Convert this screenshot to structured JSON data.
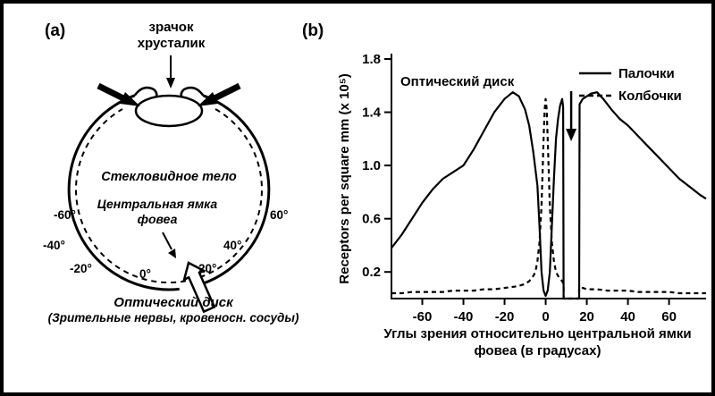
{
  "figure": {
    "colors": {
      "ink": "#000000",
      "paper": "#ffffff"
    }
  },
  "panel_a": {
    "label": "(a)",
    "pupil_line1": "зрачок",
    "pupil_line2": "хрусталик",
    "vitreous": "Стекловидное тело",
    "fovea_line1": "Центральная ямка",
    "fovea_line2": "фовеа",
    "optic_line1": "Оптический диск",
    "optic_line2": "(Зрительные нервы, кровеносн. сосуды)",
    "angles": [
      "-60°",
      "-40°",
      "-20°",
      "0°",
      "20°",
      "40°",
      "60°"
    ]
  },
  "panel_b": {
    "label": "(b)"
  },
  "chart_data": {
    "type": "line",
    "title": "",
    "ylabel": "Receptors per square mm (x 10⁵)",
    "xlabel_line1": "Углы зрения относительно центральной ямки",
    "xlabel_line2": "фовеа (в градусах)",
    "xlim": [
      -75,
      78
    ],
    "ylim": [
      0,
      1.8
    ],
    "x_ticks": [
      -60,
      -40,
      -20,
      0,
      20,
      40,
      60
    ],
    "y_ticks": [
      0.2,
      0.6,
      1.0,
      1.4,
      1.8
    ],
    "grid": false,
    "legend_position": "top-right",
    "annotation": {
      "label": "Оптический диск",
      "arrow_x_deg": 12.4
    },
    "series": [
      {
        "name": "Палочки",
        "style": "solid",
        "points": [
          [
            -75,
            0.38
          ],
          [
            -70,
            0.48
          ],
          [
            -65,
            0.6
          ],
          [
            -60,
            0.72
          ],
          [
            -55,
            0.82
          ],
          [
            -50,
            0.9
          ],
          [
            -45,
            0.95
          ],
          [
            -40,
            1.0
          ],
          [
            -35,
            1.12
          ],
          [
            -30,
            1.26
          ],
          [
            -25,
            1.4
          ],
          [
            -20,
            1.5
          ],
          [
            -16,
            1.55
          ],
          [
            -13,
            1.52
          ],
          [
            -10,
            1.42
          ],
          [
            -8,
            1.3
          ],
          [
            -6,
            1.1
          ],
          [
            -4,
            0.85
          ],
          [
            -3,
            0.55
          ],
          [
            -2,
            0.2
          ],
          [
            -1,
            0.06
          ],
          [
            0,
            0.02
          ],
          [
            1,
            0.06
          ],
          [
            2,
            0.2
          ],
          [
            3,
            0.55
          ],
          [
            4,
            0.9
          ],
          [
            5,
            1.2
          ],
          [
            6,
            1.35
          ],
          [
            7,
            1.45
          ],
          [
            8,
            1.5
          ],
          [
            8.5,
            1.44
          ],
          [
            8.7,
            0.0
          ],
          [
            16.3,
            0.0
          ],
          [
            16.5,
            1.46
          ],
          [
            18,
            1.5
          ],
          [
            22,
            1.54
          ],
          [
            25,
            1.55
          ],
          [
            28,
            1.5
          ],
          [
            32,
            1.42
          ],
          [
            36,
            1.35
          ],
          [
            40,
            1.3
          ],
          [
            45,
            1.22
          ],
          [
            50,
            1.14
          ],
          [
            55,
            1.06
          ],
          [
            60,
            0.98
          ],
          [
            65,
            0.9
          ],
          [
            70,
            0.84
          ],
          [
            75,
            0.78
          ],
          [
            78,
            0.75
          ]
        ]
      },
      {
        "name": "Колбочки",
        "style": "dashed",
        "points": [
          [
            -75,
            0.04
          ],
          [
            -70,
            0.04
          ],
          [
            -65,
            0.05
          ],
          [
            -60,
            0.05
          ],
          [
            -55,
            0.05
          ],
          [
            -50,
            0.05
          ],
          [
            -45,
            0.06
          ],
          [
            -40,
            0.06
          ],
          [
            -35,
            0.06
          ],
          [
            -30,
            0.07
          ],
          [
            -25,
            0.07
          ],
          [
            -20,
            0.08
          ],
          [
            -15,
            0.09
          ],
          [
            -12,
            0.1
          ],
          [
            -10,
            0.11
          ],
          [
            -8,
            0.13
          ],
          [
            -6,
            0.17
          ],
          [
            -5,
            0.2
          ],
          [
            -4,
            0.28
          ],
          [
            -3,
            0.42
          ],
          [
            -2,
            0.7
          ],
          [
            -1.5,
            0.95
          ],
          [
            -1,
            1.2
          ],
          [
            -0.5,
            1.42
          ],
          [
            0,
            1.5
          ],
          [
            0.5,
            1.42
          ],
          [
            1,
            1.2
          ],
          [
            1.5,
            0.95
          ],
          [
            2,
            0.7
          ],
          [
            3,
            0.42
          ],
          [
            4,
            0.28
          ],
          [
            5,
            0.2
          ],
          [
            6,
            0.17
          ],
          [
            8,
            0.13
          ],
          [
            8.7,
            0.11
          ],
          [
            8.7,
            0.0
          ],
          [
            16.3,
            0.0
          ],
          [
            16.3,
            0.08
          ],
          [
            18,
            0.08
          ],
          [
            20,
            0.07
          ],
          [
            25,
            0.07
          ],
          [
            30,
            0.06
          ],
          [
            35,
            0.06
          ],
          [
            40,
            0.06
          ],
          [
            45,
            0.05
          ],
          [
            50,
            0.05
          ],
          [
            55,
            0.05
          ],
          [
            60,
            0.05
          ],
          [
            65,
            0.04
          ],
          [
            70,
            0.04
          ],
          [
            75,
            0.04
          ],
          [
            78,
            0.04
          ]
        ]
      }
    ]
  }
}
